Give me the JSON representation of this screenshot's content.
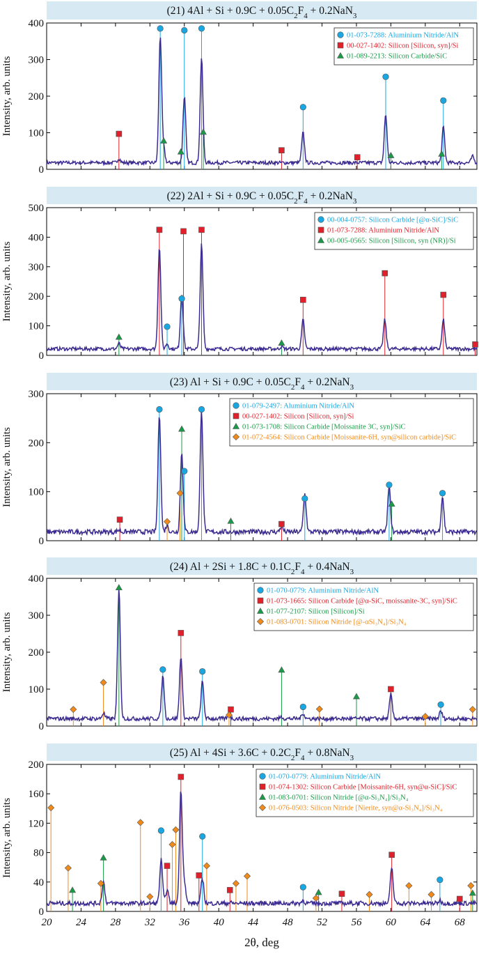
{
  "colors": {
    "pattern": "#3b2a8f",
    "title_band": "#d7eaf4",
    "aln": "#1aa6e0",
    "si": "#e0202a",
    "sic_green": "#1a9a48",
    "orange": "#f08a1a"
  },
  "xaxis": {
    "label": "2θ, deg",
    "min": 20,
    "max": 70,
    "ticks": [
      "20",
      "24",
      "28",
      "32",
      "36",
      "40",
      "44",
      "48",
      "52",
      "56",
      "60",
      "64",
      "68"
    ]
  },
  "ylabel": "Intensity, arb. units",
  "chart_data": [
    {
      "type": "line",
      "title_parts": [
        "(21) 4Al + Si + 0.9C + 0.05C",
        "2",
        "F",
        "4",
        " + 0.2NaN",
        "3"
      ],
      "ylim": [
        0,
        400
      ],
      "yticks": [
        "0",
        "100",
        "200",
        "300",
        "400"
      ],
      "legend": [
        "01-073-7288: Aluminium Nitride/AlN",
        "00-027-1402: Silicon [Silicon, syn]/Si",
        "01-089-2213: Silicon Carbide/SiC"
      ],
      "series": [
        {
          "label_idx": 0,
          "marker": "circle",
          "color": "aln",
          "lines": [
            [
              33.2,
              385
            ],
            [
              36.0,
              380
            ],
            [
              38.0,
              385
            ],
            [
              49.8,
              170
            ],
            [
              59.4,
              253
            ],
            [
              66.1,
              188
            ]
          ]
        },
        {
          "label_idx": 1,
          "marker": "square",
          "color": "si",
          "lines": [
            [
              28.4,
              97
            ],
            [
              47.3,
              52
            ],
            [
              56.1,
              33
            ]
          ]
        },
        {
          "label_idx": 2,
          "marker": "triangle",
          "color": "sic_green",
          "lines": [
            [
              33.6,
              78
            ],
            [
              35.6,
              48
            ],
            [
              38.2,
              102
            ],
            [
              60.0,
              38
            ],
            [
              65.9,
              42
            ]
          ]
        }
      ],
      "peaks": [
        [
          28.4,
          30
        ],
        [
          33.2,
          365
        ],
        [
          33.6,
          55
        ],
        [
          36.0,
          200
        ],
        [
          38.0,
          305
        ],
        [
          49.8,
          100
        ],
        [
          59.4,
          150
        ],
        [
          66.1,
          115
        ],
        [
          69.5,
          35
        ]
      ],
      "baseline": 18
    },
    {
      "type": "line",
      "title_parts": [
        "(22) 2Al + Si + 0.9C + 0.05C",
        "2",
        "F",
        "4",
        " + 0.2NaN",
        "3"
      ],
      "ylim": [
        0,
        500
      ],
      "yticks": [
        "0",
        "100",
        "200",
        "300",
        "400",
        "500"
      ],
      "legend": [
        "00-004-0757: Silicon Carbide [@α-SiC]/SiC",
        "01-073-7288: Aluminium Nitride/AlN",
        "00-005-0565: Silicon [Silicon, syn (NR)]/Si"
      ],
      "series": [
        {
          "label_idx": 0,
          "marker": "circle",
          "color": "aln",
          "lines": [
            [
              34.0,
              97
            ],
            [
              35.7,
              192
            ]
          ]
        },
        {
          "label_idx": 1,
          "marker": "square",
          "color": "si",
          "lines": [
            [
              33.1,
              425
            ],
            [
              35.9,
              420
            ],
            [
              38.0,
              425
            ],
            [
              49.8,
              188
            ],
            [
              59.3,
              278
            ],
            [
              66.1,
              205
            ],
            [
              69.8,
              37
            ]
          ]
        },
        {
          "label_idx": 2,
          "marker": "triangle",
          "color": "sic_green",
          "lines": [
            [
              28.4,
              62
            ],
            [
              47.3,
              42
            ]
          ]
        }
      ],
      "peaks": [
        [
          28.4,
          40
        ],
        [
          33.1,
          370
        ],
        [
          34.0,
          40
        ],
        [
          35.7,
          210
        ],
        [
          38.0,
          375
        ],
        [
          47.3,
          30
        ],
        [
          49.8,
          120
        ],
        [
          59.3,
          120
        ],
        [
          66.1,
          120
        ]
      ],
      "baseline": 22
    },
    {
      "type": "line",
      "title_parts": [
        "(23) Al + Si + 0.9C + 0.05C",
        "2",
        "F",
        "4",
        " + 0.2NaN",
        "3"
      ],
      "ylim": [
        0,
        300
      ],
      "yticks": [
        "0",
        "100",
        "200",
        "300"
      ],
      "legend": [
        "01-079-2497: Aluminium Nitride/AlN",
        "00-027-1402: Silicon [Silicon, syn]/Si",
        "01-073-1708: Silicon Carbide [Moissanite 3C, syn]/SiC",
        "01-072-4564: Silicon Carbide [Moissanite-6H, syn@silicon carbide]/SiC"
      ],
      "series": [
        {
          "label_idx": 0,
          "marker": "circle",
          "color": "aln",
          "lines": [
            [
              33.1,
              268
            ],
            [
              36.0,
              142
            ],
            [
              38.0,
              268
            ],
            [
              50.0,
              86
            ],
            [
              59.8,
              114
            ],
            [
              66.0,
              97
            ]
          ]
        },
        {
          "label_idx": 1,
          "marker": "square",
          "color": "si",
          "lines": [
            [
              28.5,
              43
            ],
            [
              47.3,
              34
            ]
          ]
        },
        {
          "label_idx": 2,
          "marker": "triangle",
          "color": "sic_green",
          "lines": [
            [
              35.7,
              228
            ],
            [
              41.4,
              40
            ],
            [
              60.1,
              75
            ]
          ]
        },
        {
          "label_idx": 3,
          "marker": "diamond",
          "color": "orange",
          "lines": [
            [
              34.0,
              39
            ],
            [
              35.5,
              97
            ]
          ]
        }
      ],
      "peaks": [
        [
          28.4,
          22
        ],
        [
          33.1,
          260
        ],
        [
          34.0,
          32
        ],
        [
          35.7,
          180
        ],
        [
          38.0,
          265
        ],
        [
          47.3,
          30
        ],
        [
          50.0,
          95
        ],
        [
          59.8,
          110
        ],
        [
          66.0,
          90
        ]
      ],
      "baseline": 18
    },
    {
      "type": "line",
      "title_parts": [
        "(24) Al + 2Si + 1.8C + 0.1C",
        "2",
        "F",
        "4",
        " + 0.4NaN",
        "3"
      ],
      "ylim": [
        0,
        400
      ],
      "yticks": [
        "0",
        "100",
        "200",
        "300",
        "400"
      ],
      "legend": [
        "01-070-0779: Aluminium Nitride/AlN",
        "01-073-1665: Silicon Carbide [@α-SiC, moissanite-3C, syn]/SiC",
        "01-077-2107: Silicon [Silicon]/Si",
        "01-083-0701: Silicon Nitride [@-αSi₃N₄]/Si₃N₄"
      ],
      "series": [
        {
          "label_idx": 0,
          "marker": "circle",
          "color": "aln",
          "lines": [
            [
              33.5,
              153
            ],
            [
              38.1,
              148
            ],
            [
              49.8,
              52
            ],
            [
              65.8,
              58
            ]
          ]
        },
        {
          "label_idx": 1,
          "marker": "square",
          "color": "si",
          "lines": [
            [
              35.6,
              252
            ],
            [
              41.4,
              45
            ],
            [
              60.0,
              100
            ]
          ]
        },
        {
          "label_idx": 2,
          "marker": "triangle",
          "color": "sic_green",
          "lines": [
            [
              28.4,
              375
            ],
            [
              47.3,
              152
            ],
            [
              56.0,
              80
            ]
          ]
        },
        {
          "label_idx": 3,
          "marker": "diamond",
          "color": "orange",
          "lines": [
            [
              23.1,
              45
            ],
            [
              26.6,
              118
            ],
            [
              41.2,
              30
            ],
            [
              51.7,
              46
            ],
            [
              64.0,
              26
            ],
            [
              69.5,
              45
            ]
          ]
        }
      ],
      "peaks": [
        [
          26.6,
          35
        ],
        [
          28.4,
          370
        ],
        [
          33.5,
          135
        ],
        [
          35.6,
          190
        ],
        [
          38.1,
          120
        ],
        [
          41.2,
          30
        ],
        [
          47.3,
          25
        ],
        [
          49.8,
          35
        ],
        [
          60.0,
          85
        ],
        [
          65.8,
          40
        ]
      ],
      "baseline": 20
    },
    {
      "type": "line",
      "title_parts": [
        "(25) Al + 4Si + 3.6C + 0.2C",
        "2",
        "F",
        "4",
        " + 0.8NaN",
        "3"
      ],
      "ylim": [
        0,
        200
      ],
      "yticks": [
        "0",
        "40",
        "80",
        "120",
        "160",
        "200"
      ],
      "legend": [
        "01-070-0779: Aluminium Nitride/AlN",
        "01-074-1302: Silicon Carbide [Moissanite-6H, syn@α-SiC]/SiC",
        "01-083-0701: Silicon Nitride [@α-Si₃N₄]/Si₃N₄",
        "01-076-0503: Silicon Nitride [Nierite, syn@α-Si₃N₄]/Si₃N₄"
      ],
      "series": [
        {
          "label_idx": 0,
          "marker": "circle",
          "color": "aln",
          "lines": [
            [
              33.3,
              110
            ],
            [
              38.1,
              102
            ],
            [
              49.8,
              33
            ],
            [
              65.7,
              43
            ]
          ]
        },
        {
          "label_idx": 1,
          "marker": "square",
          "color": "si",
          "lines": [
            [
              34.0,
              62
            ],
            [
              35.6,
              183
            ],
            [
              37.7,
              49
            ],
            [
              41.3,
              29
            ],
            [
              54.3,
              24
            ],
            [
              60.1,
              77
            ],
            [
              68.0,
              17
            ]
          ]
        },
        {
          "label_idx": 2,
          "marker": "triangle",
          "color": "sic_green",
          "lines": [
            [
              23.0,
              29
            ],
            [
              26.6,
              73
            ],
            [
              51.6,
              26
            ],
            [
              69.5,
              25
            ]
          ]
        },
        {
          "label_idx": 3,
          "marker": "diamond",
          "color": "orange",
          "lines": [
            [
              20.5,
              141
            ],
            [
              22.5,
              59
            ],
            [
              26.3,
              38
            ],
            [
              30.9,
              121
            ],
            [
              32.0,
              20
            ],
            [
              34.6,
              91
            ],
            [
              35.0,
              111
            ],
            [
              38.6,
              62
            ],
            [
              42.0,
              38
            ],
            [
              43.3,
              48
            ],
            [
              51.3,
              18
            ],
            [
              57.5,
              23
            ],
            [
              62.1,
              35
            ],
            [
              64.7,
              23
            ],
            [
              69.3,
              35
            ]
          ]
        }
      ],
      "peaks": [
        [
          26.6,
          40
        ],
        [
          33.3,
          70
        ],
        [
          34.0,
          30
        ],
        [
          35.6,
          165
        ],
        [
          36.0,
          40
        ],
        [
          38.1,
          45
        ],
        [
          41.3,
          12
        ],
        [
          49.8,
          15
        ],
        [
          60.1,
          60
        ],
        [
          65.7,
          15
        ]
      ],
      "baseline": 11
    }
  ]
}
